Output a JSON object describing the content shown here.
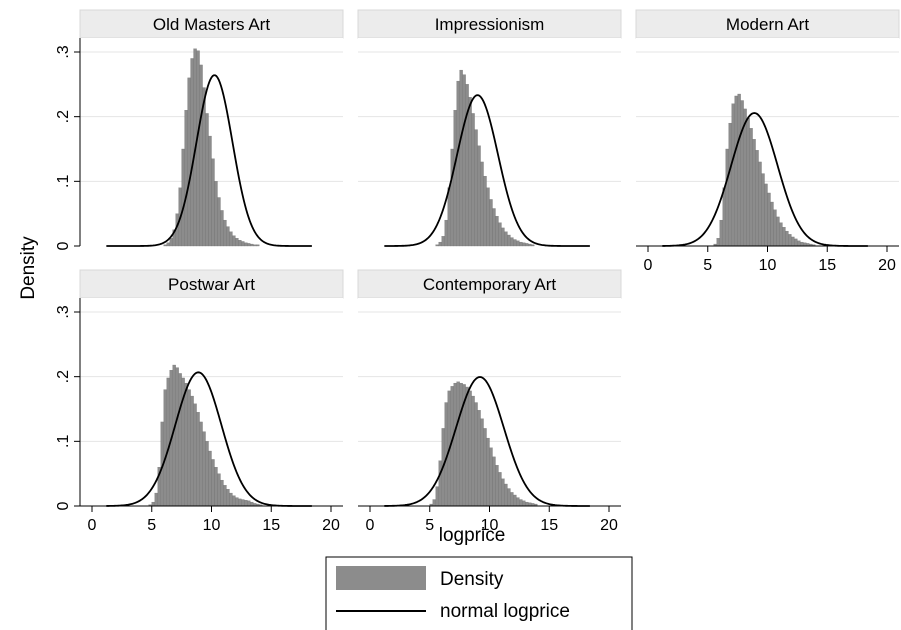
{
  "chart_data": {
    "type": "histogram",
    "ylabel": "Density",
    "xlabel": "logprice",
    "xlim": [
      0,
      20
    ],
    "ylim": [
      0,
      0.3
    ],
    "x_ticks": [
      "0",
      "5",
      "10",
      "15",
      "20"
    ],
    "y_ticks": [
      "0",
      ".1",
      ".2",
      ".3"
    ],
    "grid": true,
    "legend": {
      "position": "bottom",
      "entries": [
        {
          "label": "Density",
          "kind": "bar",
          "color": "#8c8c8c"
        },
        {
          "label": "normal logprice",
          "kind": "line",
          "color": "#000000"
        }
      ]
    },
    "bin_width": 0.25,
    "colors": {
      "bar": "#8c8c8c",
      "bar_stroke": "#6f6f6f",
      "curve": "#000000",
      "grid": "#e4e4e4",
      "title_strip": "#ececec"
    },
    "panels": [
      {
        "title": "Old Masters Art",
        "histogram": {
          "start": 6.0,
          "values": [
            0.002,
            0.005,
            0.012,
            0.025,
            0.05,
            0.09,
            0.15,
            0.21,
            0.26,
            0.29,
            0.305,
            0.302,
            0.28,
            0.245,
            0.205,
            0.17,
            0.135,
            0.1,
            0.075,
            0.055,
            0.04,
            0.03,
            0.022,
            0.016,
            0.012,
            0.009,
            0.007,
            0.005,
            0.004,
            0.003,
            0.002,
            0.002
          ]
        },
        "normal": {
          "mean": 10.25,
          "sd": 1.51,
          "x_range": [
            1.2,
            18.4
          ]
        }
      },
      {
        "title": "Impressionism",
        "histogram": {
          "start": 5.5,
          "values": [
            0.002,
            0.006,
            0.015,
            0.04,
            0.09,
            0.15,
            0.21,
            0.255,
            0.272,
            0.265,
            0.25,
            0.23,
            0.205,
            0.18,
            0.155,
            0.13,
            0.108,
            0.09,
            0.072,
            0.058,
            0.046,
            0.036,
            0.028,
            0.022,
            0.017,
            0.013,
            0.01,
            0.008,
            0.006,
            0.005,
            0.004,
            0.003,
            0.002
          ]
        },
        "normal": {
          "mean": 9.0,
          "sd": 1.71,
          "x_range": [
            1.2,
            18.4
          ]
        }
      },
      {
        "title": "Modern Art",
        "histogram": {
          "start": 5.5,
          "values": [
            0.003,
            0.012,
            0.04,
            0.09,
            0.15,
            0.19,
            0.22,
            0.232,
            0.235,
            0.225,
            0.212,
            0.198,
            0.182,
            0.165,
            0.148,
            0.13,
            0.112,
            0.096,
            0.082,
            0.068,
            0.056,
            0.045,
            0.036,
            0.029,
            0.023,
            0.018,
            0.014,
            0.011,
            0.008,
            0.006,
            0.005,
            0.004,
            0.003,
            0.002
          ]
        },
        "normal": {
          "mean": 8.9,
          "sd": 1.94,
          "x_range": [
            1.2,
            18.4
          ]
        }
      },
      {
        "title": "Postwar Art",
        "histogram": {
          "start": 4.75,
          "values": [
            0.002,
            0.006,
            0.02,
            0.06,
            0.13,
            0.18,
            0.198,
            0.21,
            0.218,
            0.214,
            0.205,
            0.198,
            0.19,
            0.18,
            0.17,
            0.158,
            0.145,
            0.13,
            0.115,
            0.1,
            0.085,
            0.072,
            0.06,
            0.05,
            0.04,
            0.032,
            0.026,
            0.02,
            0.016,
            0.013,
            0.011,
            0.01,
            0.009,
            0.008,
            0.006,
            0.004,
            0.003,
            0.002
          ]
        },
        "normal": {
          "mean": 8.9,
          "sd": 1.93,
          "x_range": [
            1.2,
            18.4
          ]
        }
      },
      {
        "title": "Contemporary Art",
        "histogram": {
          "start": 5.0,
          "values": [
            0.003,
            0.01,
            0.03,
            0.07,
            0.12,
            0.16,
            0.178,
            0.185,
            0.19,
            0.192,
            0.19,
            0.188,
            0.184,
            0.178,
            0.17,
            0.16,
            0.148,
            0.135,
            0.12,
            0.105,
            0.09,
            0.076,
            0.063,
            0.052,
            0.042,
            0.034,
            0.027,
            0.021,
            0.017,
            0.013,
            0.01,
            0.008,
            0.006,
            0.005,
            0.004,
            0.003
          ]
        },
        "normal": {
          "mean": 9.2,
          "sd": 2.0,
          "x_range": [
            1.2,
            18.4
          ]
        }
      }
    ]
  }
}
